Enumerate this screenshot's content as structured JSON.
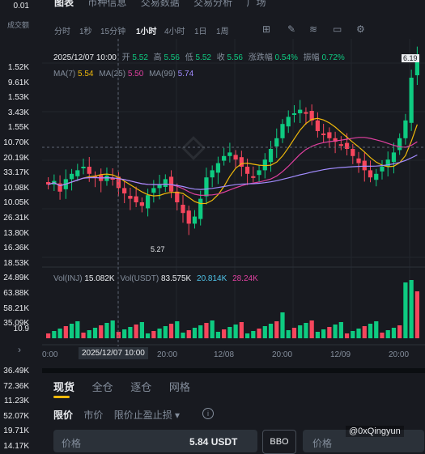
{
  "left_column": {
    "top_value": "0.01",
    "header": "成交额",
    "values": [
      "1.52K",
      "9.61K",
      "1.53K",
      "3.43K",
      "1.55K",
      "10.70K",
      "20.19K",
      "33.17K",
      "10.98K",
      "10.05K",
      "26.31K",
      "13.80K",
      "16.36K",
      "18.53K",
      "24.89K",
      "63.88K",
      "58.21K",
      "35.09K"
    ],
    "mid_value": "10.9",
    "lower_values": [
      "36.49K",
      "72.36K",
      "11.23K",
      "52.07K",
      "19.71K",
      "14.17K"
    ]
  },
  "top_tabs": [
    "图表",
    "币种信息",
    "交易数据",
    "交易分析",
    "广场"
  ],
  "timeframes": [
    "分时",
    "1秒",
    "15分钟",
    "1小时",
    "4小时",
    "1日",
    "1周"
  ],
  "active_timeframe": "1小时",
  "toolbar_icons": [
    "indicator-icon",
    "draw-icon",
    "chart-type-icon",
    "display-icon",
    "settings-icon"
  ],
  "ohlc": {
    "date": "2025/12/07 10:00",
    "open_label": "开",
    "open": "5.52",
    "high_label": "高",
    "high": "5.56",
    "low_label": "低",
    "low": "5.52",
    "close_label": "收",
    "close": "5.56",
    "change_label": "涨跌幅",
    "change": "0.54%",
    "amp_label": "振幅",
    "amp": "0.72%"
  },
  "ma": {
    "ma7_label": "MA(7)",
    "ma7": "5.54",
    "ma25_label": "MA(25)",
    "ma25": "5.50",
    "ma99_label": "MA(99)",
    "ma99": "5.74"
  },
  "vol": {
    "inj_label": "Vol(INJ)",
    "inj": "15.082K",
    "usdt_label": "Vol(USDT)",
    "usdt": "83.575K",
    "ma1": "20.814K",
    "ma2": "28.24K"
  },
  "price_label_high": "6.19",
  "price_label_low": "5.27",
  "x_ticks": [
    "0:00",
    "20:00",
    "12/08",
    "20:00",
    "12/09",
    "20:00"
  ],
  "x_crosshair": "2025/12/07 10:00",
  "colors": {
    "up": "#0ecb81",
    "down": "#f6465d",
    "ma7": "#f0b90b",
    "ma25": "#e040a0",
    "ma99": "#a28cff",
    "accent": "#f0b90b"
  },
  "order_tabs": [
    "现货",
    "全仓",
    "逐仓",
    "网格"
  ],
  "active_order_tab": "现货",
  "order_types": [
    "限价",
    "市价",
    "限价止盈止损 ▾"
  ],
  "active_order_type": "限价",
  "price_input": {
    "placeholder": "价格",
    "value": "5.84 USDT"
  },
  "bbo_label": "BBO",
  "price_input2": {
    "placeholder": "价格"
  },
  "watermark": "@0xQingyun"
}
